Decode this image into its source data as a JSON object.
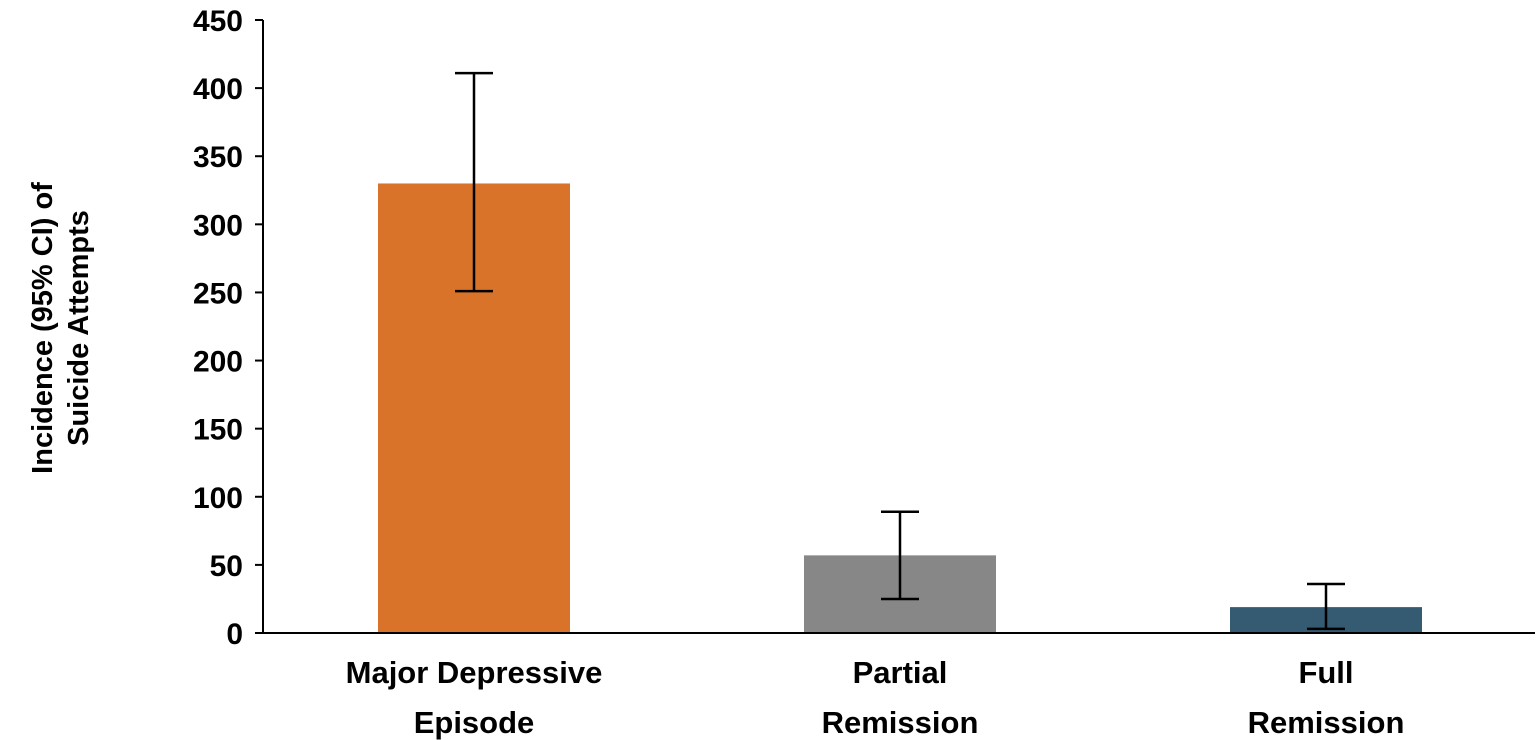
{
  "chart_data": {
    "type": "bar",
    "title": "",
    "ylabel_lines": [
      "Incidence (95% CI) of",
      "Suicide Attempts"
    ],
    "xlabel": "",
    "ylim": [
      0,
      450
    ],
    "yticks": [
      0,
      50,
      100,
      150,
      200,
      250,
      300,
      350,
      400,
      450
    ],
    "categories": [
      {
        "lines": [
          "Major Depressive",
          "Episode"
        ]
      },
      {
        "lines": [
          "Partial",
          "Remission"
        ]
      },
      {
        "lines": [
          "Full",
          "Remission"
        ]
      }
    ],
    "values": [
      330,
      57,
      19
    ],
    "ci_lower": [
      251,
      25,
      3
    ],
    "ci_upper": [
      411,
      89,
      36
    ],
    "colors": [
      "#D9732A",
      "#878787",
      "#345B72"
    ],
    "grid": false
  }
}
